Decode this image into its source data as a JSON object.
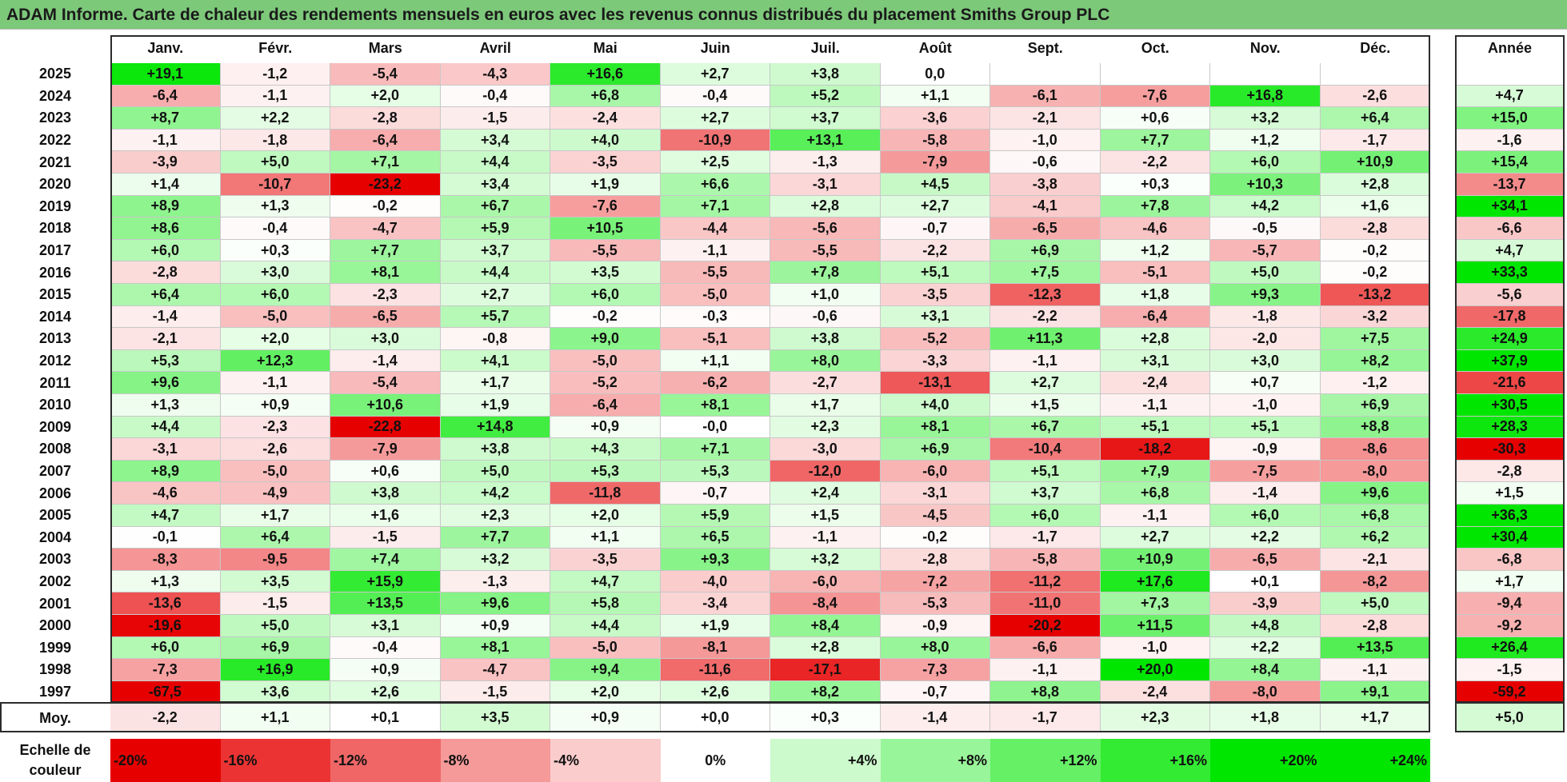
{
  "header": {
    "title": "ADAM Informe. Carte de chaleur des rendements mensuels en euros avec les revenus connus distribués du placement Smiths Group PLC"
  },
  "chart_data": {
    "type": "heatmap",
    "months": [
      "Janv.",
      "Févr.",
      "Mars",
      "Avril",
      "Mai",
      "Juin",
      "Juil.",
      "Août",
      "Sept.",
      "Oct.",
      "Nov.",
      "Déc."
    ],
    "year_column_label": "Année",
    "rows": [
      {
        "year": "2025",
        "values": [
          "+19,1",
          "-1,2",
          "-5,4",
          "-4,3",
          "+16,6",
          "+2,7",
          "+3,8",
          "0,0",
          "",
          "",
          "",
          ""
        ],
        "annual": ""
      },
      {
        "year": "2024",
        "values": [
          "-6,4",
          "-1,1",
          "+2,0",
          "-0,4",
          "+6,8",
          "-0,4",
          "+5,2",
          "+1,1",
          "-6,1",
          "-7,6",
          "+16,8",
          "-2,6"
        ],
        "annual": "+4,7"
      },
      {
        "year": "2023",
        "values": [
          "+8,7",
          "+2,2",
          "-2,8",
          "-1,5",
          "-2,4",
          "+2,7",
          "+3,7",
          "-3,6",
          "-2,1",
          "+0,6",
          "+3,2",
          "+6,4"
        ],
        "annual": "+15,0"
      },
      {
        "year": "2022",
        "values": [
          "-1,1",
          "-1,8",
          "-6,4",
          "+3,4",
          "+4,0",
          "-10,9",
          "+13,1",
          "-5,8",
          "-1,0",
          "+7,7",
          "+1,2",
          "-1,7"
        ],
        "annual": "-1,6"
      },
      {
        "year": "2021",
        "values": [
          "-3,9",
          "+5,0",
          "+7,1",
          "+4,4",
          "-3,5",
          "+2,5",
          "-1,3",
          "-7,9",
          "-0,6",
          "-2,2",
          "+6,0",
          "+10,9"
        ],
        "annual": "+15,4"
      },
      {
        "year": "2020",
        "values": [
          "+1,4",
          "-10,7",
          "-23,2",
          "+3,4",
          "+1,9",
          "+6,6",
          "-3,1",
          "+4,5",
          "-3,8",
          "+0,3",
          "+10,3",
          "+2,8"
        ],
        "annual": "-13,7"
      },
      {
        "year": "2019",
        "values": [
          "+8,9",
          "+1,3",
          "-0,2",
          "+6,7",
          "-7,6",
          "+7,1",
          "+2,8",
          "+2,7",
          "-4,1",
          "+7,8",
          "+4,2",
          "+1,6"
        ],
        "annual": "+34,1"
      },
      {
        "year": "2018",
        "values": [
          "+8,6",
          "-0,4",
          "-4,7",
          "+5,9",
          "+10,5",
          "-4,4",
          "-5,6",
          "-0,7",
          "-6,5",
          "-4,6",
          "-0,5",
          "-2,8"
        ],
        "annual": "-6,6"
      },
      {
        "year": "2017",
        "values": [
          "+6,0",
          "+0,3",
          "+7,7",
          "+3,7",
          "-5,5",
          "-1,1",
          "-5,5",
          "-2,2",
          "+6,9",
          "+1,2",
          "-5,7",
          "-0,2"
        ],
        "annual": "+4,7"
      },
      {
        "year": "2016",
        "values": [
          "-2,8",
          "+3,0",
          "+8,1",
          "+4,4",
          "+3,5",
          "-5,5",
          "+7,8",
          "+5,1",
          "+7,5",
          "-5,1",
          "+5,0",
          "-0,2"
        ],
        "annual": "+33,3"
      },
      {
        "year": "2015",
        "values": [
          "+6,4",
          "+6,0",
          "-2,3",
          "+2,7",
          "+6,0",
          "-5,0",
          "+1,0",
          "-3,5",
          "-12,3",
          "+1,8",
          "+9,3",
          "-13,2"
        ],
        "annual": "-5,6"
      },
      {
        "year": "2014",
        "values": [
          "-1,4",
          "-5,0",
          "-6,5",
          "+5,7",
          "-0,2",
          "-0,3",
          "-0,6",
          "+3,1",
          "-2,2",
          "-6,4",
          "-1,8",
          "-3,2"
        ],
        "annual": "-17,8"
      },
      {
        "year": "2013",
        "values": [
          "-2,1",
          "+2,0",
          "+3,0",
          "-0,8",
          "+9,0",
          "-5,1",
          "+3,8",
          "-5,2",
          "+11,3",
          "+2,8",
          "-2,0",
          "+7,5"
        ],
        "annual": "+24,9"
      },
      {
        "year": "2012",
        "values": [
          "+5,3",
          "+12,3",
          "-1,4",
          "+4,1",
          "-5,0",
          "+1,1",
          "+8,0",
          "-3,3",
          "-1,1",
          "+3,1",
          "+3,0",
          "+8,2"
        ],
        "annual": "+37,9"
      },
      {
        "year": "2011",
        "values": [
          "+9,6",
          "-1,1",
          "-5,4",
          "+1,7",
          "-5,2",
          "-6,2",
          "-2,7",
          "-13,1",
          "+2,7",
          "-2,4",
          "+0,7",
          "-1,2"
        ],
        "annual": "-21,6"
      },
      {
        "year": "2010",
        "values": [
          "+1,3",
          "+0,9",
          "+10,6",
          "+1,9",
          "-6,4",
          "+8,1",
          "+1,7",
          "+4,0",
          "+1,5",
          "-1,1",
          "-1,0",
          "+6,9"
        ],
        "annual": "+30,5"
      },
      {
        "year": "2009",
        "values": [
          "+4,4",
          "-2,3",
          "-22,8",
          "+14,8",
          "+0,9",
          "-0,0",
          "+2,3",
          "+8,1",
          "+6,7",
          "+5,1",
          "+5,1",
          "+8,8"
        ],
        "annual": "+28,3"
      },
      {
        "year": "2008",
        "values": [
          "-3,1",
          "-2,6",
          "-7,9",
          "+3,8",
          "+4,3",
          "+7,1",
          "-3,0",
          "+6,9",
          "-10,4",
          "-18,2",
          "-0,9",
          "-8,6"
        ],
        "annual": "-30,3"
      },
      {
        "year": "2007",
        "values": [
          "+8,9",
          "-5,0",
          "+0,6",
          "+5,0",
          "+5,3",
          "+5,3",
          "-12,0",
          "-6,0",
          "+5,1",
          "+7,9",
          "-7,5",
          "-8,0"
        ],
        "annual": "-2,8"
      },
      {
        "year": "2006",
        "values": [
          "-4,6",
          "-4,9",
          "+3,8",
          "+4,2",
          "-11,8",
          "-0,7",
          "+2,4",
          "-3,1",
          "+3,7",
          "+6,8",
          "-1,4",
          "+9,6"
        ],
        "annual": "+1,5"
      },
      {
        "year": "2005",
        "values": [
          "+4,7",
          "+1,7",
          "+1,6",
          "+2,3",
          "+2,0",
          "+5,9",
          "+1,5",
          "-4,5",
          "+6,0",
          "-1,1",
          "+6,0",
          "+6,8"
        ],
        "annual": "+36,3"
      },
      {
        "year": "2004",
        "values": [
          "-0,1",
          "+6,4",
          "-1,5",
          "+7,7",
          "+1,1",
          "+6,5",
          "-1,1",
          "-0,2",
          "-1,7",
          "+2,7",
          "+2,2",
          "+6,2"
        ],
        "annual": "+30,4"
      },
      {
        "year": "2003",
        "values": [
          "-8,3",
          "-9,5",
          "+7,4",
          "+3,2",
          "-3,5",
          "+9,3",
          "+3,2",
          "-2,8",
          "-5,8",
          "+10,9",
          "-6,5",
          "-2,1"
        ],
        "annual": "-6,8"
      },
      {
        "year": "2002",
        "values": [
          "+1,3",
          "+3,5",
          "+15,9",
          "-1,3",
          "+4,7",
          "-4,0",
          "-6,0",
          "-7,2",
          "-11,2",
          "+17,6",
          "+0,1",
          "-8,2"
        ],
        "annual": "+1,7"
      },
      {
        "year": "2001",
        "values": [
          "-13,6",
          "-1,5",
          "+13,5",
          "+9,6",
          "+5,8",
          "-3,4",
          "-8,4",
          "-5,3",
          "-11,0",
          "+7,3",
          "-3,9",
          "+5,0"
        ],
        "annual": "-9,4"
      },
      {
        "year": "2000",
        "values": [
          "-19,6",
          "+5,0",
          "+3,1",
          "+0,9",
          "+4,4",
          "+1,9",
          "+8,4",
          "-0,9",
          "-20,2",
          "+11,5",
          "+4,8",
          "-2,8"
        ],
        "annual": "-9,2"
      },
      {
        "year": "1999",
        "values": [
          "+6,0",
          "+6,9",
          "-0,4",
          "+8,1",
          "-5,0",
          "-8,1",
          "+2,8",
          "+8,0",
          "-6,6",
          "-1,0",
          "+2,2",
          "+13,5"
        ],
        "annual": "+26,4"
      },
      {
        "year": "1998",
        "values": [
          "-7,3",
          "+16,9",
          "+0,9",
          "-4,7",
          "+9,4",
          "-11,6",
          "-17,1",
          "-7,3",
          "-1,1",
          "+20,0",
          "+8,4",
          "-1,1"
        ],
        "annual": "-1,5"
      },
      {
        "year": "1997",
        "values": [
          "-67,5",
          "+3,6",
          "+2,6",
          "-1,5",
          "+2,0",
          "+2,6",
          "+8,2",
          "-0,7",
          "+8,8",
          "-2,4",
          "-8,0",
          "+9,1"
        ],
        "annual": "-59,2"
      }
    ],
    "average": {
      "label": "Moy.",
      "values": [
        "-2,2",
        "+1,1",
        "+0,1",
        "+3,5",
        "+0,9",
        "+0,0",
        "+0,3",
        "-1,4",
        "-1,7",
        "+2,3",
        "+1,8",
        "+1,7"
      ],
      "annual": "+5,0"
    },
    "color_scale": {
      "label": "Echelle de\ncouleur",
      "stops": [
        "-20%",
        "-16%",
        "-12%",
        "-8%",
        "-4%",
        "0%",
        "+4%",
        "+8%",
        "+12%",
        "+16%",
        "+20%",
        "+24%"
      ],
      "stop_values": [
        -20,
        -16,
        -12,
        -8,
        -4,
        0,
        4,
        8,
        12,
        16,
        20,
        24
      ],
      "negative_color": "#e60000",
      "positive_color": "#00e600",
      "neutral_color": "#ffffff"
    }
  }
}
